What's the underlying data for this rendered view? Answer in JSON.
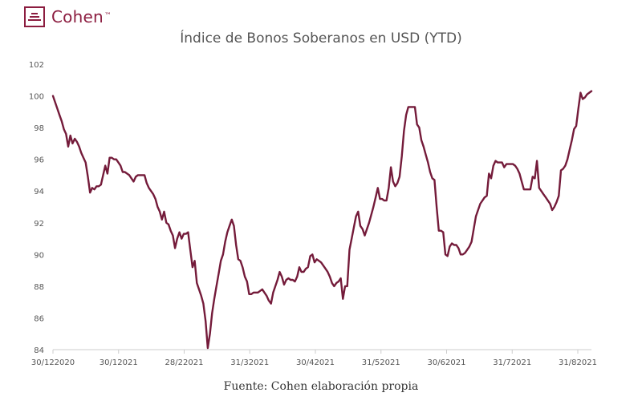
{
  "brand": {
    "name": "Cohen",
    "mark": "™"
  },
  "footer": {
    "source": "Fuente: Cohen elaboración propia"
  },
  "colors": {
    "line": "#741b3a",
    "brand": "#8c1d40",
    "axis": "#cccccc"
  },
  "chart_data": {
    "type": "line",
    "title": "Índice de Bonos Soberanos en USD (YTD)",
    "xlabel": "",
    "ylabel": "",
    "ylim": [
      84,
      102
    ],
    "yticks": [
      84,
      86,
      88,
      90,
      92,
      94,
      96,
      98,
      100,
      102
    ],
    "xticks": [
      "30/122020",
      "30/12021",
      "28/22021",
      "31/32021",
      "30/42021",
      "31/52021",
      "30/62021",
      "31/72021",
      "31/82021"
    ],
    "grid": false,
    "series": [
      {
        "values": [
          100.0,
          99.6,
          99.2,
          98.8,
          98.4,
          97.9,
          97.6,
          96.8,
          97.5,
          97.0,
          97.3,
          97.1,
          96.8,
          96.4,
          96.1,
          95.8,
          94.9,
          93.9,
          94.2,
          94.1,
          94.3,
          94.3,
          94.4,
          95.0,
          95.6,
          95.1,
          96.1,
          96.1,
          96.0,
          96.0,
          95.8,
          95.6,
          95.2,
          95.2,
          95.1,
          95.0,
          94.8,
          94.6,
          94.9,
          95.0,
          95.0,
          95.0,
          95.0,
          94.5,
          94.2,
          94.0,
          93.8,
          93.5,
          93.0,
          92.7,
          92.2,
          92.7,
          92.0,
          91.9,
          91.5,
          91.2,
          90.4,
          91.0,
          91.4,
          91.0,
          91.3,
          91.3,
          91.4,
          90.3,
          89.2,
          89.6,
          88.2,
          87.8,
          87.4,
          86.9,
          85.8,
          84.1,
          85.0,
          86.3,
          87.2,
          88.0,
          88.8,
          89.6,
          90.0,
          90.8,
          91.4,
          91.8,
          92.2,
          91.8,
          90.6,
          89.7,
          89.6,
          89.2,
          88.6,
          88.3,
          87.5,
          87.5,
          87.6,
          87.6,
          87.6,
          87.7,
          87.8,
          87.6,
          87.4,
          87.1,
          86.9,
          87.6,
          88.0,
          88.4,
          88.9,
          88.6,
          88.1,
          88.4,
          88.5,
          88.4,
          88.4,
          88.3,
          88.6,
          89.2,
          88.9,
          88.9,
          89.1,
          89.2,
          89.9,
          90.0,
          89.5,
          89.7,
          89.6,
          89.5,
          89.3,
          89.1,
          88.9,
          88.6,
          88.2,
          88.0,
          88.2,
          88.3,
          88.5,
          87.2,
          88.0,
          88.0,
          90.3,
          91.0,
          91.7,
          92.4,
          92.7,
          91.8,
          91.6,
          91.2,
          91.6,
          92.0,
          92.5,
          93.0,
          93.6,
          94.2,
          93.5,
          93.5,
          93.4,
          93.4,
          94.2,
          95.5,
          94.6,
          94.3,
          94.5,
          94.9,
          96.2,
          97.8,
          98.8,
          99.3,
          99.3,
          99.3,
          99.3,
          98.2,
          98.0,
          97.2,
          96.8,
          96.3,
          95.8,
          95.2,
          94.8,
          94.7,
          93.0,
          91.5,
          91.5,
          91.4,
          90.0,
          89.9,
          90.5,
          90.7,
          90.6,
          90.6,
          90.4,
          90.0,
          90.0,
          90.1,
          90.3,
          90.5,
          90.8,
          91.6,
          92.4,
          92.8,
          93.2,
          93.4,
          93.6,
          93.7,
          95.1,
          94.8,
          95.6,
          95.9,
          95.8,
          95.8,
          95.8,
          95.5,
          95.7,
          95.7,
          95.7,
          95.7,
          95.6,
          95.4,
          95.1,
          94.6,
          94.1,
          94.1,
          94.1,
          94.1,
          94.9,
          94.8,
          95.9,
          94.2,
          94.0,
          93.8,
          93.6,
          93.4,
          93.2,
          92.8,
          93.0,
          93.3,
          93.7,
          95.3,
          95.4,
          95.6,
          96.0,
          96.6,
          97.2,
          97.9,
          98.1,
          99.2,
          100.2,
          99.8,
          99.9,
          100.1,
          100.2,
          100.3
        ]
      }
    ]
  }
}
